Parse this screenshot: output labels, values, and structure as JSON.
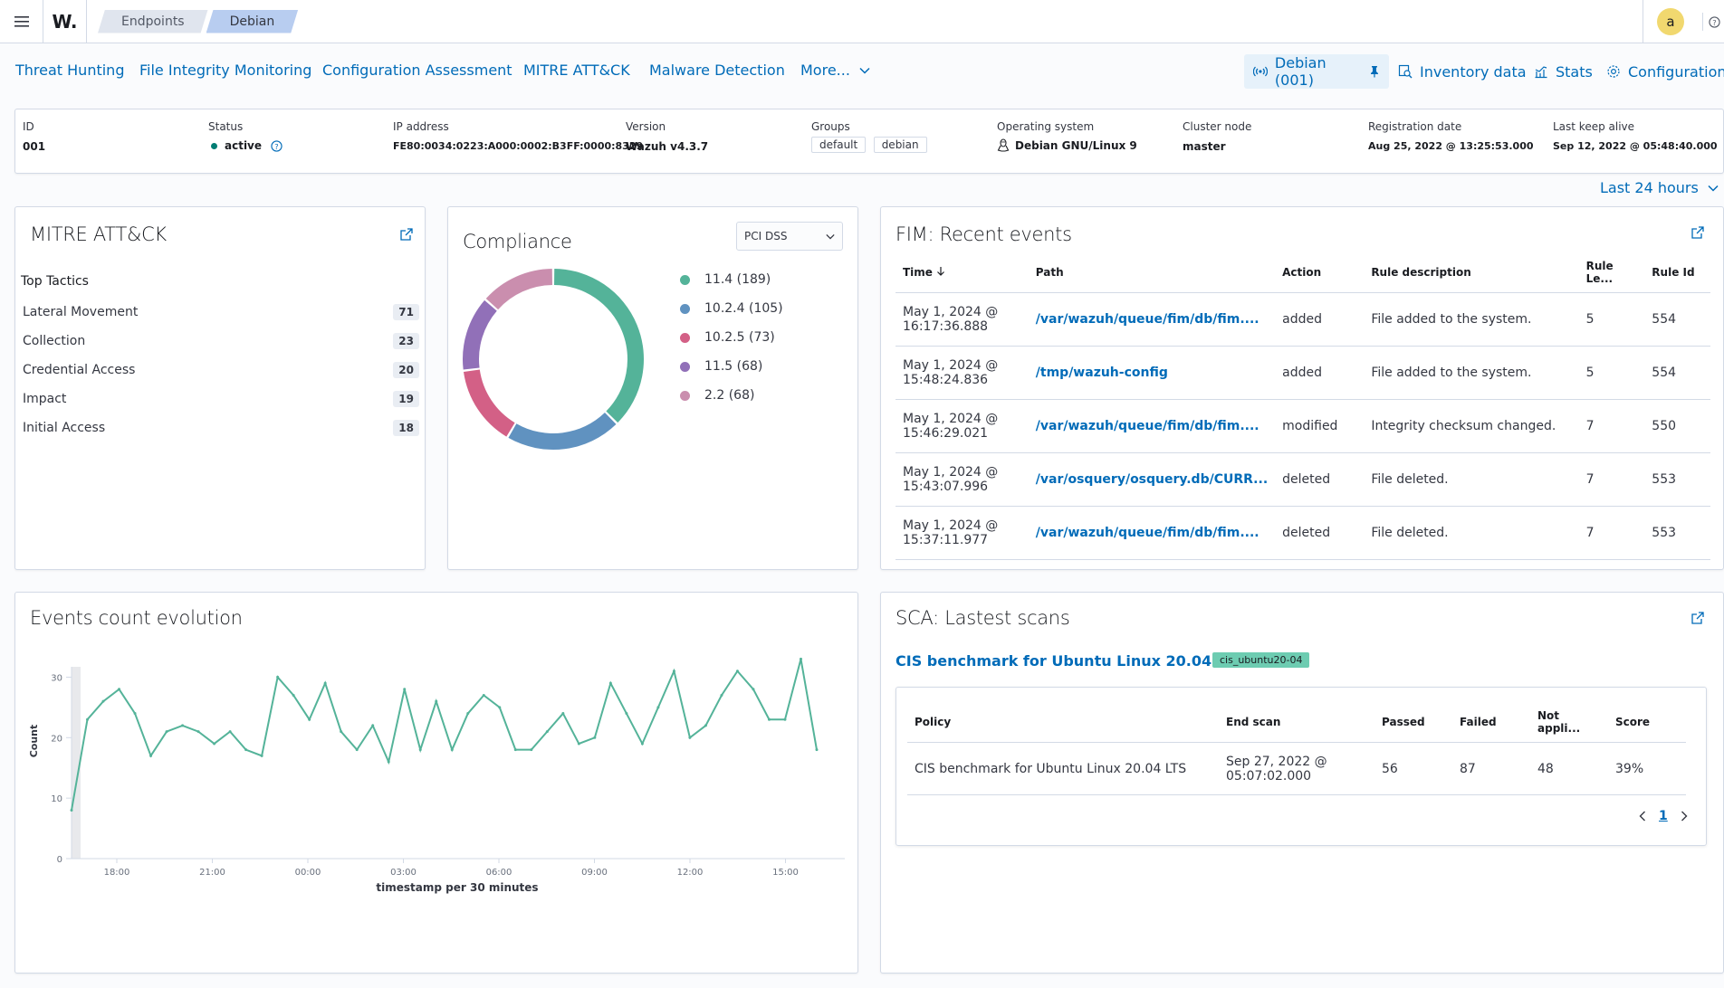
{
  "header": {
    "breadcrumbs": [
      "Endpoints",
      "Debian"
    ],
    "avatar_letter": "a",
    "logo_text": "W."
  },
  "tabs": [
    "Threat Hunting",
    "File Integrity Monitoring",
    "Configuration Assessment",
    "MITRE ATT&CK",
    "Malware Detection",
    "More..."
  ],
  "right_tabs": {
    "agent": "Debian (001)",
    "inventory": "Inventory data",
    "stats": "Stats",
    "configuration": "Configuration"
  },
  "agent_info": {
    "id_label": "ID",
    "id": "001",
    "status_label": "Status",
    "status": "active",
    "ip_label": "IP address",
    "ip": "FE80:0034:0223:A000:0002:B3FF:0000:8329",
    "version_label": "Version",
    "version": "Wazuh v4.3.7",
    "groups_label": "Groups",
    "groups": [
      "default",
      "debian"
    ],
    "os_label": "Operating system",
    "os": "Debian GNU/Linux 9",
    "cluster_label": "Cluster node",
    "cluster": "master",
    "reg_label": "Registration date",
    "reg": "Aug 25, 2022 @ 13:25:53.000",
    "keepalive_label": "Last keep alive",
    "keepalive": "Sep 12, 2022 @ 05:48:40.000",
    "status_color": "#017d73"
  },
  "time_range": "Last 24 hours",
  "mitre": {
    "title": "MITRE ATT&CK",
    "subtitle": "Top Tactics",
    "tactics": [
      {
        "name": "Lateral Movement",
        "count": "71"
      },
      {
        "name": "Collection",
        "count": "23"
      },
      {
        "name": "Credential Access",
        "count": "20"
      },
      {
        "name": "Impact",
        "count": "19"
      },
      {
        "name": "Initial Access",
        "count": "18"
      }
    ]
  },
  "compliance": {
    "title": "Compliance",
    "select": "PCI DSS",
    "legend": [
      {
        "label": "11.4 (189)",
        "value": 189,
        "color": "#54b399"
      },
      {
        "label": "10.2.4 (105)",
        "value": 105,
        "color": "#6092c0"
      },
      {
        "label": "10.2.5 (73)",
        "value": 73,
        "color": "#d36086"
      },
      {
        "label": "11.5 (68)",
        "value": 68,
        "color": "#9170b8"
      },
      {
        "label": "2.2 (68)",
        "value": 68,
        "color": "#ca8eae"
      }
    ]
  },
  "fim": {
    "title": "FIM: Recent events",
    "columns": [
      "Time",
      "Path",
      "Action",
      "Rule description",
      "Rule Le...",
      "Rule Id"
    ],
    "rows": [
      {
        "time1": "May 1, 2024 @",
        "time2": "16:17:36.888",
        "path": "/var/wazuh/queue/fim/db/fim....",
        "action": "added",
        "desc": "File added to the system.",
        "level": "5",
        "id": "554"
      },
      {
        "time1": "May 1, 2024 @",
        "time2": "15:48:24.836",
        "path": "/tmp/wazuh-config",
        "action": "added",
        "desc": "File added to the system.",
        "level": "5",
        "id": "554"
      },
      {
        "time1": "May 1, 2024 @",
        "time2": "15:46:29.021",
        "path": "/var/wazuh/queue/fim/db/fim....",
        "action": "modified",
        "desc": "Integrity checksum changed.",
        "level": "7",
        "id": "550"
      },
      {
        "time1": "May 1, 2024 @",
        "time2": "15:43:07.996",
        "path": "/var/osquery/osquery.db/CURR...",
        "action": "deleted",
        "desc": "File deleted.",
        "level": "7",
        "id": "553"
      },
      {
        "time1": "May 1, 2024 @",
        "time2": "15:37:11.977",
        "path": "/var/wazuh/queue/fim/db/fim....",
        "action": "deleted",
        "desc": "File deleted.",
        "level": "7",
        "id": "553"
      }
    ]
  },
  "events": {
    "title": "Events count evolution"
  },
  "chart_data": {
    "type": "line",
    "ylabel": "Count",
    "xlabel": "timestamp per 30 minutes",
    "ylim": [
      0,
      35
    ],
    "yticks": [
      "0",
      "10",
      "20",
      "30"
    ],
    "xticks": [
      "18:00",
      "21:00",
      "00:00",
      "03:00",
      "06:00",
      "09:00",
      "12:00",
      "15:00"
    ],
    "color": "#54b399",
    "series": [
      {
        "values": [
          8,
          23,
          26,
          28,
          24,
          17,
          21,
          22,
          21,
          19,
          21,
          18,
          17,
          30,
          27,
          23,
          29,
          21,
          18,
          22,
          16,
          28,
          18,
          26,
          18,
          24,
          27,
          25,
          18,
          18,
          21,
          24,
          19,
          20,
          29,
          24,
          19,
          25,
          31,
          20,
          22,
          27,
          31,
          28,
          23,
          23,
          33,
          18
        ]
      }
    ]
  },
  "sca": {
    "title": "SCA: Lastest scans",
    "benchmark": "CIS benchmark for Ubuntu Linux 20.04 LTS",
    "tag": "cis_ubuntu20-04",
    "columns": [
      "Policy",
      "End scan",
      "Passed",
      "Failed",
      "Not appli...",
      "Score"
    ],
    "row": {
      "policy": "CIS benchmark for Ubuntu Linux 20.04 LTS",
      "end1": "Sep 27, 2022 @",
      "end2": "05:07:02.000",
      "passed": "56",
      "failed": "87",
      "na": "48",
      "score": "39%"
    },
    "page": "1"
  }
}
